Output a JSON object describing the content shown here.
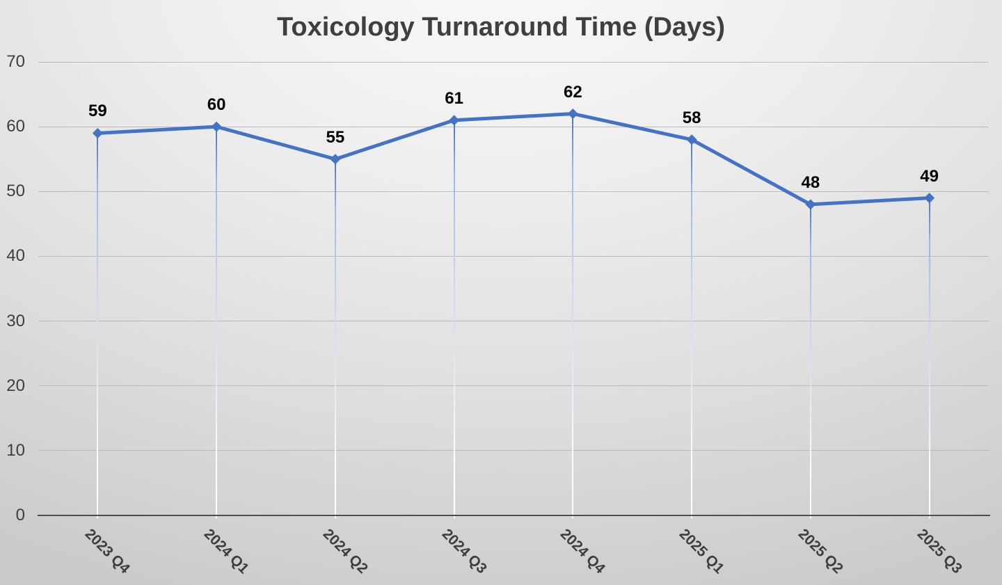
{
  "chart_data": {
    "type": "line",
    "title": "Toxicology Turnaround Time (Days)",
    "categories": [
      "2023 Q4",
      "2024 Q1",
      "2024 Q2",
      "2024 Q3",
      "2024 Q4",
      "2025 Q1",
      "2025 Q2",
      "2025 Q3"
    ],
    "values": [
      59,
      60,
      55,
      61,
      62,
      58,
      48,
      49
    ],
    "ylim": [
      0,
      70
    ],
    "ytick_step": 10,
    "ytick_labels": [
      "0",
      "10",
      "20",
      "30",
      "40",
      "50",
      "60",
      "70"
    ],
    "grid": true,
    "legend_position": "none",
    "data_labels_shown": true,
    "marker": "diamond",
    "droplines": true,
    "xlabel": "",
    "ylabel": ""
  },
  "colors": {
    "line": "#4472C4",
    "marker": "#4472C4",
    "dropline_top": "#4472C4",
    "dropline_bottom": "#FFFFFF",
    "gridline": "#B3B3B3",
    "axis_line": "#4E4E4E",
    "title_text": "#3F3F3F",
    "axis_text": "#3D3D3D",
    "data_label_text": "#000000"
  }
}
